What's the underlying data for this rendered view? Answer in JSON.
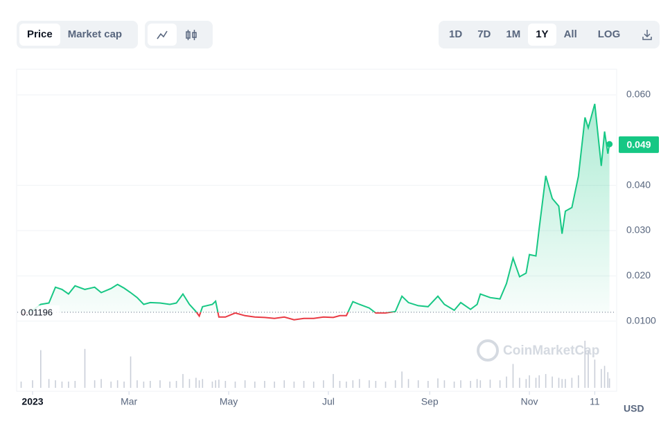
{
  "ui": {
    "tabs": [
      "Price",
      "Market cap"
    ],
    "ranges": [
      "1D",
      "7D",
      "1M",
      "1Y",
      "All"
    ],
    "log": "LOG",
    "currency": "USD",
    "watermark": "CoinMarketCap"
  },
  "chart_data": {
    "type": "line",
    "x": [
      -7,
      0,
      5,
      10,
      14,
      18,
      22,
      26,
      32,
      38,
      42,
      48,
      52,
      56,
      60,
      64,
      68,
      72,
      78,
      84,
      88,
      92,
      96,
      100,
      102,
      104,
      110,
      112,
      114,
      118,
      124,
      130,
      136,
      142,
      148,
      154,
      160,
      166,
      172,
      178,
      184,
      188,
      192,
      196,
      200,
      206,
      210,
      216,
      222,
      226,
      230,
      236,
      242,
      248,
      252,
      258,
      262,
      268,
      272,
      274,
      280,
      286,
      290,
      294,
      298,
      302,
      304,
      308,
      310,
      314,
      318,
      322,
      324,
      326,
      330,
      334,
      338,
      340,
      344,
      348,
      350,
      352,
      353
    ],
    "values": [
      0.0114,
      0.0124,
      0.0137,
      0.014,
      0.0175,
      0.017,
      0.016,
      0.0178,
      0.017,
      0.0175,
      0.0163,
      0.0172,
      0.0181,
      0.0173,
      0.0163,
      0.0152,
      0.0137,
      0.0141,
      0.014,
      0.0137,
      0.014,
      0.016,
      0.0137,
      0.0121,
      0.0111,
      0.0132,
      0.0137,
      0.0144,
      0.0109,
      0.0109,
      0.0118,
      0.0112,
      0.0109,
      0.0108,
      0.0106,
      0.0109,
      0.0103,
      0.0106,
      0.0106,
      0.0109,
      0.0108,
      0.0112,
      0.0112,
      0.0143,
      0.0137,
      0.0129,
      0.0118,
      0.0118,
      0.0121,
      0.0155,
      0.0141,
      0.0134,
      0.0132,
      0.0155,
      0.0137,
      0.0124,
      0.0141,
      0.0126,
      0.0137,
      0.016,
      0.0152,
      0.0149,
      0.0183,
      0.0239,
      0.0198,
      0.0206,
      0.0247,
      0.0244,
      0.0305,
      0.0421,
      0.0371,
      0.0354,
      0.0293,
      0.0343,
      0.0351,
      0.042,
      0.055,
      0.0527,
      0.058,
      0.0443,
      0.0519,
      0.047,
      0.0491
    ],
    "volume": [
      10,
      12,
      60,
      14,
      12,
      10,
      10,
      11,
      62,
      12,
      14,
      10,
      12,
      10,
      50,
      12,
      10,
      11,
      12,
      10,
      11,
      22,
      14,
      16,
      12,
      14,
      10,
      12,
      13,
      11,
      10,
      12,
      10,
      11,
      10,
      12,
      10,
      11,
      10,
      12,
      22,
      11,
      10,
      12,
      14,
      12,
      11,
      10,
      12,
      26,
      14,
      12,
      11,
      15,
      12,
      10,
      12,
      11,
      14,
      12,
      13,
      12,
      18,
      38,
      16,
      14,
      20,
      16,
      20,
      22,
      18,
      16,
      14,
      14,
      16,
      20,
      75,
      60,
      45,
      30,
      35,
      25,
      15
    ],
    "baseline": 0.01196,
    "current_price": 0.049,
    "up_color": "#16c784",
    "down_color": "#ea3943",
    "xlim": [
      -7,
      354
    ],
    "xticks": [
      {
        "value": 0,
        "label": "2023"
      },
      {
        "value": 59,
        "label": "Mar"
      },
      {
        "value": 120,
        "label": "May"
      },
      {
        "value": 181,
        "label": "Jul"
      },
      {
        "value": 243,
        "label": "Sep"
      },
      {
        "value": 304,
        "label": "Nov"
      },
      {
        "value": 344,
        "label": "11"
      }
    ],
    "ylim": [
      0.0075,
      0.0655
    ],
    "yticks": [
      {
        "value": 0.01,
        "label": "0.0100"
      },
      {
        "value": 0.02,
        "label": "0.020"
      },
      {
        "value": 0.03,
        "label": "0.030"
      },
      {
        "value": 0.04,
        "label": "0.040"
      },
      {
        "value": 0.06,
        "label": "0.060"
      }
    ],
    "grid": true
  }
}
